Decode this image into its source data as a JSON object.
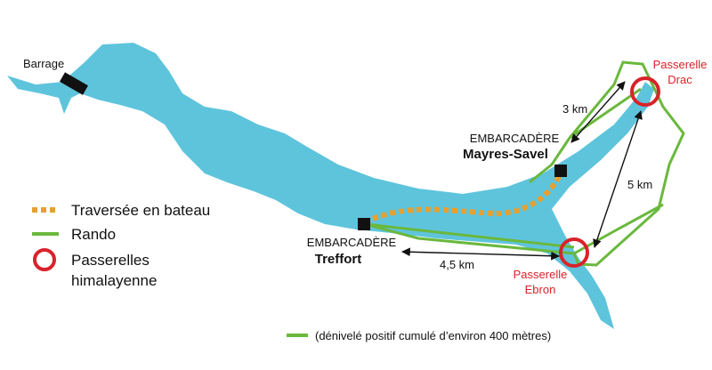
{
  "labels": {
    "barrage": "Barrage",
    "passerelle_drac": [
      "Passerelle",
      "Drac"
    ],
    "passerelle_ebron": [
      "Passerelle",
      "Ebron"
    ],
    "embarcadere_mayres": [
      "EMBARCADÈRE",
      "Mayres-Savel"
    ],
    "embarcadere_treffort": [
      "EMBARCADÈRE",
      "Treffort"
    ]
  },
  "distances": [
    "3 km",
    "5 km",
    "4,5 km"
  ],
  "legend": {
    "items": [
      [
        "Traversée en bateau"
      ],
      [
        "Rando"
      ],
      [
        "Passerelles",
        "himalayenne"
      ]
    ]
  },
  "footnote": "(dénivelé positif cumulé d’environ 400 mètres)"
}
